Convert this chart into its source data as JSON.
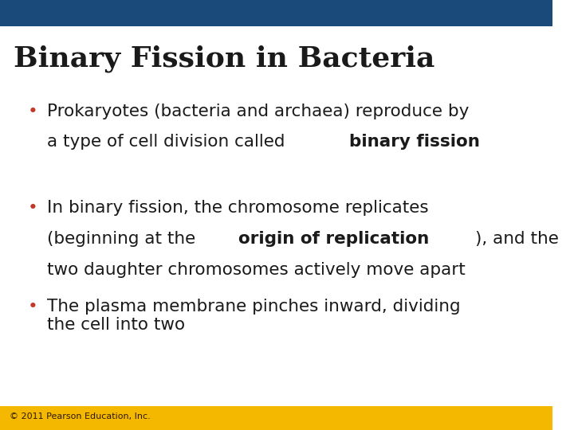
{
  "title": "Binary Fission in Bacteria",
  "title_color": "#1a1a1a",
  "title_fontsize": 26,
  "title_font": "serif",
  "title_bold": true,
  "top_bar_color": "#1a4a7a",
  "top_bar_height": 0.062,
  "bottom_bar_color": "#f5b800",
  "bottom_bar_height": 0.055,
  "bg_color": "#ffffff",
  "bullet_color": "#c0392b",
  "bullet_char": "•",
  "footer_text": "© 2011 Pearson Education, Inc.",
  "footer_fontsize": 8,
  "footer_color": "#2c1a00",
  "body_fontsize": 15.5,
  "body_color": "#1a1a1a",
  "body_font": "sans-serif",
  "bullet_items": [
    {
      "normal": "Prokaryotes (bacteria and archaea) reproduce by\na type of cell division called ",
      "bold": "binary fission",
      "after_bold": ""
    },
    {
      "normal": "In binary fission, the chromosome replicates\n(beginning at the ",
      "bold": "origin of replication",
      "after_bold": "), and the\ntwo daughter chromosomes actively move apart"
    },
    {
      "normal": "The plasma membrane pinches inward, dividing\nthe cell into two",
      "bold": "",
      "after_bold": ""
    }
  ]
}
